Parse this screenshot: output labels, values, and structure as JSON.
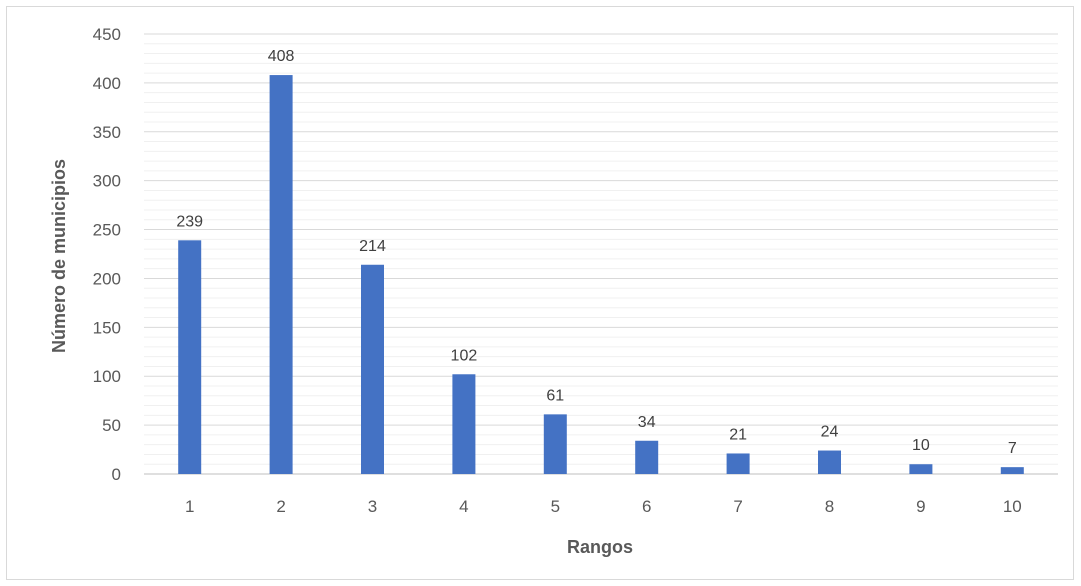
{
  "chart_data": {
    "type": "bar",
    "title": "",
    "xlabel": "Rangos",
    "ylabel": "Número de municipios",
    "categories": [
      "1",
      "2",
      "3",
      "4",
      "5",
      "6",
      "7",
      "8",
      "9",
      "10"
    ],
    "values": [
      239,
      408,
      214,
      102,
      61,
      34,
      21,
      24,
      10,
      7
    ],
    "ylim": [
      0,
      450
    ],
    "yticks": [
      "0",
      "50",
      "100",
      "150",
      "200",
      "250",
      "300",
      "350",
      "400",
      "450"
    ],
    "grid": true,
    "legend": "none",
    "colors": {
      "bar": "#4472c4",
      "major_grid": "#d9d9d9",
      "minor_grid": "#f0f0f0",
      "frame": "#d9d9d9"
    }
  }
}
